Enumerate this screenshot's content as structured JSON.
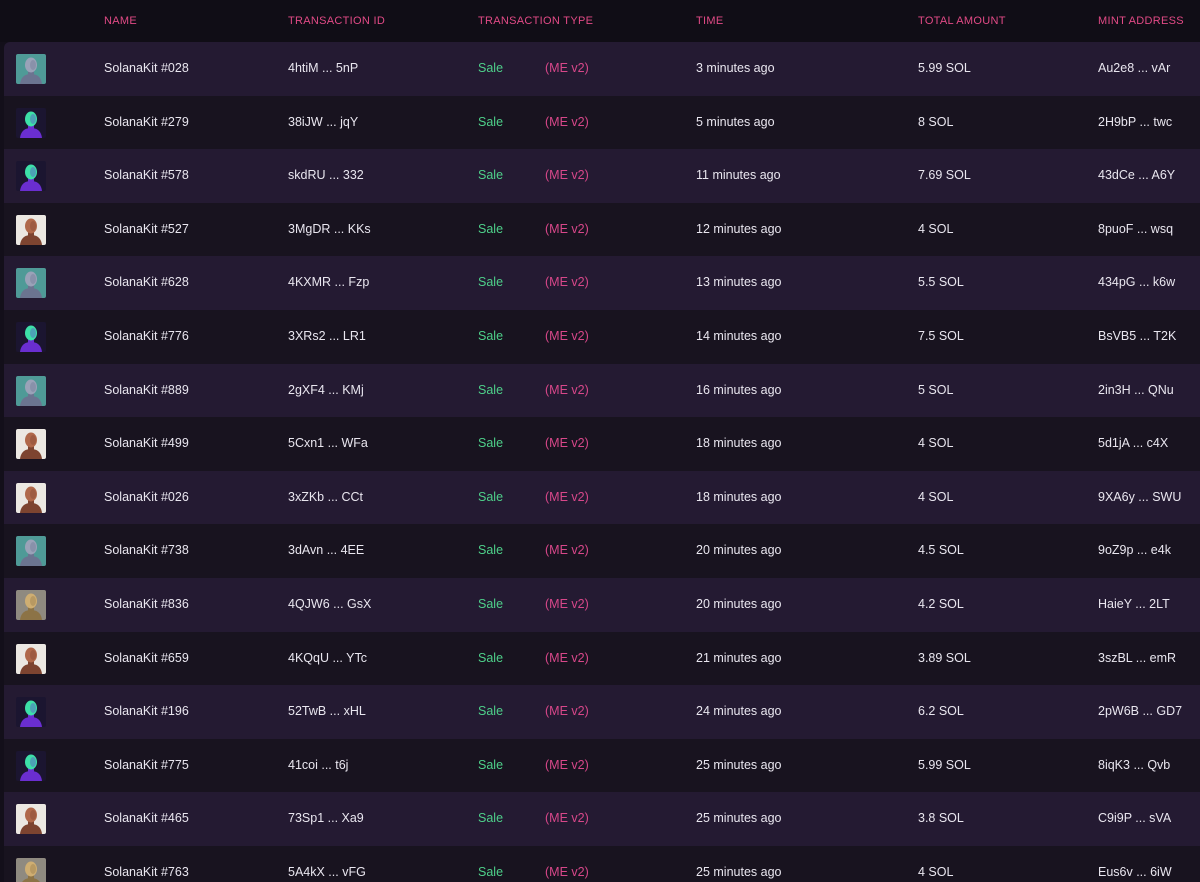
{
  "table": {
    "headers": {
      "name": "NAME",
      "transaction_id": "TRANSACTION ID",
      "transaction_type": "TRANSACTION TYPE",
      "time": "TIME",
      "total_amount": "TOTAL AMOUNT",
      "mint_address": "MINT ADDRESS"
    },
    "rows": [
      {
        "avatar": "teal",
        "name": "SolanaKit #028",
        "txid": "4htiM ... 5nP",
        "type": "Sale",
        "market": "(ME v2)",
        "time": "3 minutes ago",
        "amount": "5.99 SOL",
        "mint": "Au2e8 ... vAr"
      },
      {
        "avatar": "purple",
        "name": "SolanaKit #279",
        "txid": "38iJW ... jqY",
        "type": "Sale",
        "market": "(ME v2)",
        "time": "5 minutes ago",
        "amount": "8 SOL",
        "mint": "2H9bP ... twc"
      },
      {
        "avatar": "purple",
        "name": "SolanaKit #578",
        "txid": "skdRU ... 332",
        "type": "Sale",
        "market": "(ME v2)",
        "time": "11 minutes ago",
        "amount": "7.69 SOL",
        "mint": "43dCe ... A6Y"
      },
      {
        "avatar": "skin",
        "name": "SolanaKit #527",
        "txid": "3MgDR ... KKs",
        "type": "Sale",
        "market": "(ME v2)",
        "time": "12 minutes ago",
        "amount": "4 SOL",
        "mint": "8puoF ... wsq"
      },
      {
        "avatar": "teal",
        "name": "SolanaKit #628",
        "txid": "4KXMR ... Fzp",
        "type": "Sale",
        "market": "(ME v2)",
        "time": "13 minutes ago",
        "amount": "5.5 SOL",
        "mint": "434pG ... k6w"
      },
      {
        "avatar": "purple",
        "name": "SolanaKit #776",
        "txid": "3XRs2 ... LR1",
        "type": "Sale",
        "market": "(ME v2)",
        "time": "14 minutes ago",
        "amount": "7.5 SOL",
        "mint": "BsVB5 ... T2K"
      },
      {
        "avatar": "teal",
        "name": "SolanaKit #889",
        "txid": "2gXF4 ... KMj",
        "type": "Sale",
        "market": "(ME v2)",
        "time": "16 minutes ago",
        "amount": "5 SOL",
        "mint": "2in3H ... QNu"
      },
      {
        "avatar": "skin",
        "name": "SolanaKit #499",
        "txid": "5Cxn1 ... WFa",
        "type": "Sale",
        "market": "(ME v2)",
        "time": "18 minutes ago",
        "amount": "4 SOL",
        "mint": "5d1jA ... c4X"
      },
      {
        "avatar": "skin",
        "name": "SolanaKit #026",
        "txid": "3xZKb ... CCt",
        "type": "Sale",
        "market": "(ME v2)",
        "time": "18 minutes ago",
        "amount": "4 SOL",
        "mint": "9XA6y ... SWU"
      },
      {
        "avatar": "teal",
        "name": "SolanaKit #738",
        "txid": "3dAvn ... 4EE",
        "type": "Sale",
        "market": "(ME v2)",
        "time": "20 minutes ago",
        "amount": "4.5 SOL",
        "mint": "9oZ9p ... e4k"
      },
      {
        "avatar": "gold",
        "name": "SolanaKit #836",
        "txid": "4QJW6 ... GsX",
        "type": "Sale",
        "market": "(ME v2)",
        "time": "20 minutes ago",
        "amount": "4.2 SOL",
        "mint": "HaieY ... 2LT"
      },
      {
        "avatar": "skin",
        "name": "SolanaKit #659",
        "txid": "4KQqU ... YTc",
        "type": "Sale",
        "market": "(ME v2)",
        "time": "21 minutes ago",
        "amount": "3.89 SOL",
        "mint": "3szBL ... emR"
      },
      {
        "avatar": "purple",
        "name": "SolanaKit #196",
        "txid": "52TwB ... xHL",
        "type": "Sale",
        "market": "(ME v2)",
        "time": "24 minutes ago",
        "amount": "6.2 SOL",
        "mint": "2pW6B ... GD7"
      },
      {
        "avatar": "purple",
        "name": "SolanaKit #775",
        "txid": "41coi ... t6j",
        "type": "Sale",
        "market": "(ME v2)",
        "time": "25 minutes ago",
        "amount": "5.99 SOL",
        "mint": "8iqK3 ... Qvb"
      },
      {
        "avatar": "skin",
        "name": "SolanaKit #465",
        "txid": "73Sp1 ... Xa9",
        "type": "Sale",
        "market": "(ME v2)",
        "time": "25 minutes ago",
        "amount": "3.8 SOL",
        "mint": "C9i9P ... sVA"
      },
      {
        "avatar": "gold",
        "name": "SolanaKit #763",
        "txid": "5A4kX ... vFG",
        "type": "Sale",
        "market": "(ME v2)",
        "time": "25 minutes ago",
        "amount": "4 SOL",
        "mint": "Eus6v ... 6iW"
      }
    ]
  },
  "avatar_palettes": {
    "teal": {
      "bg": "#4f9a97",
      "head": "#9aa2b8",
      "shade": "#6b7490"
    },
    "purple": {
      "bg": "#1b1530",
      "head": "#3de0a8",
      "shade": "#6a2ed0"
    },
    "skin": {
      "bg": "#ece8e2",
      "head": "#b0684a",
      "shade": "#7d4430"
    },
    "gold": {
      "bg": "#8f8a80",
      "head": "#cfae72",
      "shade": "#8c7346"
    }
  },
  "colors": {
    "header_text": "#e24a86",
    "sale": "#4ed08a",
    "market": "#d8478a",
    "row_odd": "#241a32",
    "row_even": "#18131f"
  }
}
